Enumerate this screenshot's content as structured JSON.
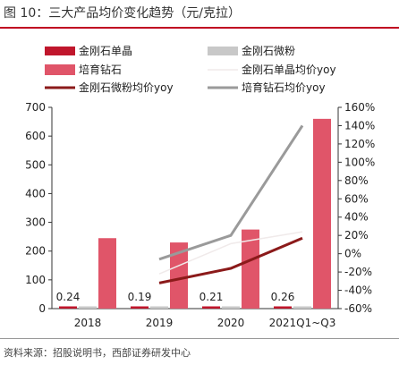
{
  "header": {
    "title": "图 10：三大产品均价变化趋势（元/克拉）"
  },
  "footer": {
    "source": "资料来源：招股说明书，西部证券研发中心"
  },
  "colors": {
    "single_crystal": "#c0162c",
    "micro_powder": "#c8c8c8",
    "lab_diamond": "#e05569",
    "single_crystal_yoy": "#f0eaea",
    "micro_powder_yoy": "#8b1a1a",
    "lab_diamond_yoy": "#9a9a9a"
  },
  "chart_data": {
    "type": "bar",
    "categories": [
      "2018",
      "2019",
      "2020",
      "2021Q1~Q3"
    ],
    "ylim": [
      0,
      700
    ],
    "y2lim": [
      -0.6,
      1.6
    ],
    "yticks": [
      "0",
      "100",
      "200",
      "300",
      "400",
      "500",
      "600",
      "700"
    ],
    "y2ticks": [
      "-60%",
      "-40%",
      "-20%",
      "0%",
      "20%",
      "40%",
      "60%",
      "80%",
      "100%",
      "120%",
      "140%",
      "160%"
    ],
    "bar_series": [
      {
        "name": "金刚石单晶",
        "values": [
          0.24,
          0.19,
          0.21,
          0.26
        ],
        "data_labels": [
          "0.24",
          "0.19",
          "0.21",
          "0.26"
        ]
      },
      {
        "name": "金刚石微粉",
        "values": [
          0.05,
          0.05,
          0.05,
          0.05
        ]
      },
      {
        "name": "培育钻石",
        "values": [
          245,
          230,
          275,
          660
        ]
      }
    ],
    "line_series": [
      {
        "name": "金刚石单晶均价yoy",
        "values": [
          null,
          -0.22,
          0.11,
          0.24
        ]
      },
      {
        "name": "金刚石微粉均价yoy",
        "values": [
          null,
          -0.32,
          -0.16,
          0.17
        ]
      },
      {
        "name": "培育钻石均价yoy",
        "values": [
          null,
          -0.06,
          0.2,
          1.4
        ]
      }
    ],
    "legend": "top"
  }
}
